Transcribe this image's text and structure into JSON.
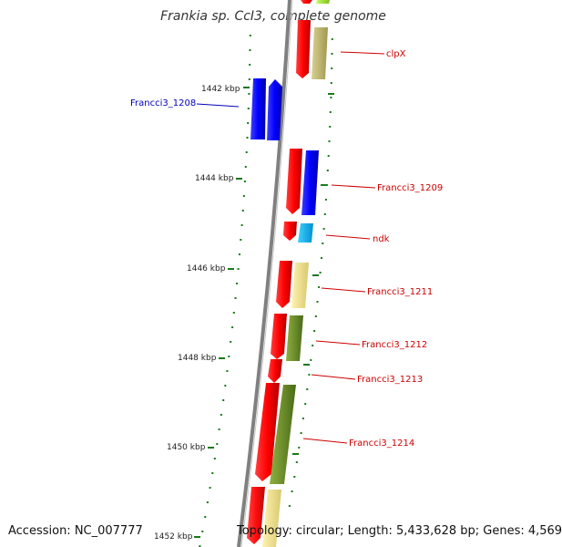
{
  "header": {
    "title": "Frankia sp. CcI3, complete genome"
  },
  "footer": {
    "accession": "Accession: NC_007777",
    "topology": "Topology: circular; Length: 5,433,628 bp; Genes: 4,569"
  },
  "colors": {
    "backbone": "#808080",
    "tick": "#1a7a1a",
    "label_red": "#cc0000",
    "label_blue": "#0000bb"
  },
  "scale": {
    "labels": [
      "1442 kbp",
      "1444 kbp",
      "1446 kbp",
      "1448 kbp",
      "1450 kbp",
      "1452 kbp"
    ]
  },
  "genes": [
    {
      "label": "clpX",
      "strand": "plus",
      "color": "#c0b870",
      "label_color": "red"
    },
    {
      "label": "Francci3_1208",
      "strand": "minus",
      "color": "#0000ee",
      "label_color": "blue"
    },
    {
      "label": "Francci3_1209",
      "strand": "plus",
      "color": "#0000ee",
      "label_color": "red"
    },
    {
      "label": "ndk",
      "strand": "plus",
      "color": "#00aaee",
      "label_color": "red"
    },
    {
      "label": "Francci3_1211",
      "strand": "plus",
      "color": "#eee090",
      "label_color": "red"
    },
    {
      "label": "Francci3_1212",
      "strand": "plus",
      "color": "#6b8e23",
      "label_color": "red"
    },
    {
      "label": "Francci3_1213",
      "strand": "plus",
      "color": "#ee0000",
      "label_color": "red"
    },
    {
      "label": "Francci3_1214",
      "strand": "plus",
      "color": "#6b8e23",
      "label_color": "red"
    }
  ]
}
